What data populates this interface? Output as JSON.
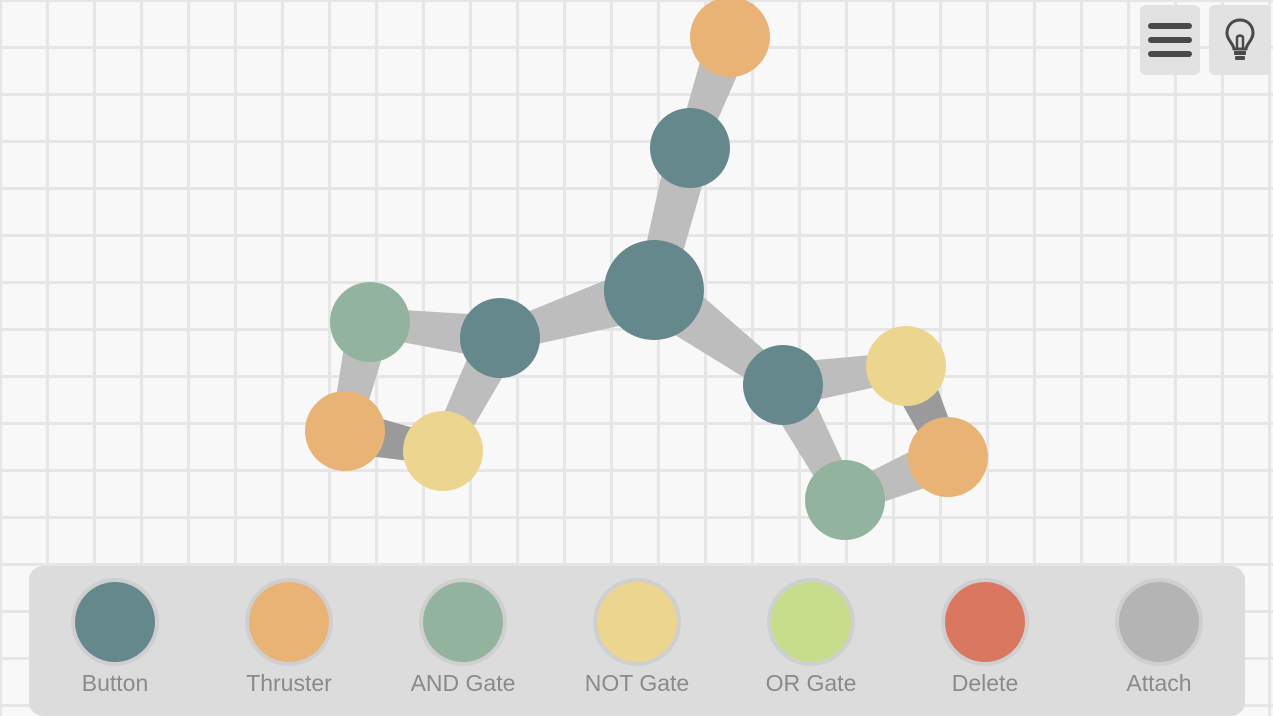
{
  "colors": {
    "button": "#64888c",
    "thruster": "#e8b374",
    "and_gate": "#92b49f",
    "not_gate": "#ecd58e",
    "or_gate": "#c8dd8c",
    "delete": "#da7760",
    "attach": "#b4b4b4",
    "link": "#bdbdbd",
    "link_dark": "#9a9a9a"
  },
  "toolbar": {
    "menu_icon": "hamburger-menu-icon",
    "hint_icon": "lightbulb-icon"
  },
  "palette": {
    "items": [
      {
        "key": "button",
        "label": "Button"
      },
      {
        "key": "thruster",
        "label": "Thruster"
      },
      {
        "key": "and_gate",
        "label": "AND Gate"
      },
      {
        "key": "not_gate",
        "label": "NOT Gate"
      },
      {
        "key": "or_gate",
        "label": "OR Gate"
      },
      {
        "key": "delete",
        "label": "Delete"
      },
      {
        "key": "attach",
        "label": "Attach"
      }
    ]
  },
  "graph": {
    "nodes": [
      {
        "id": "thruster-top",
        "type": "thruster"
      },
      {
        "id": "button-upper",
        "type": "button"
      },
      {
        "id": "button-core",
        "type": "button"
      },
      {
        "id": "button-left",
        "type": "button"
      },
      {
        "id": "and-gate-left",
        "type": "and_gate"
      },
      {
        "id": "thruster-left",
        "type": "thruster"
      },
      {
        "id": "not-gate-left",
        "type": "not_gate"
      },
      {
        "id": "button-right",
        "type": "button"
      },
      {
        "id": "not-gate-right",
        "type": "not_gate"
      },
      {
        "id": "thruster-right",
        "type": "thruster"
      },
      {
        "id": "and-gate-right",
        "type": "and_gate"
      }
    ],
    "links": [
      {
        "from": "thruster-top",
        "to": "button-upper",
        "shade": "link"
      },
      {
        "from": "button-upper",
        "to": "button-core",
        "shade": "link"
      },
      {
        "from": "button-core",
        "to": "button-left",
        "shade": "link"
      },
      {
        "from": "button-core",
        "to": "button-right",
        "shade": "link"
      },
      {
        "from": "button-left",
        "to": "and-gate-left",
        "shade": "link"
      },
      {
        "from": "button-left",
        "to": "not-gate-left",
        "shade": "link"
      },
      {
        "from": "and-gate-left",
        "to": "thruster-left",
        "shade": "link"
      },
      {
        "from": "thruster-left",
        "to": "not-gate-left",
        "shade": "link_dark"
      },
      {
        "from": "button-right",
        "to": "not-gate-right",
        "shade": "link"
      },
      {
        "from": "button-right",
        "to": "and-gate-right",
        "shade": "link"
      },
      {
        "from": "not-gate-right",
        "to": "thruster-right",
        "shade": "link_dark"
      },
      {
        "from": "thruster-right",
        "to": "and-gate-right",
        "shade": "link"
      }
    ]
  }
}
